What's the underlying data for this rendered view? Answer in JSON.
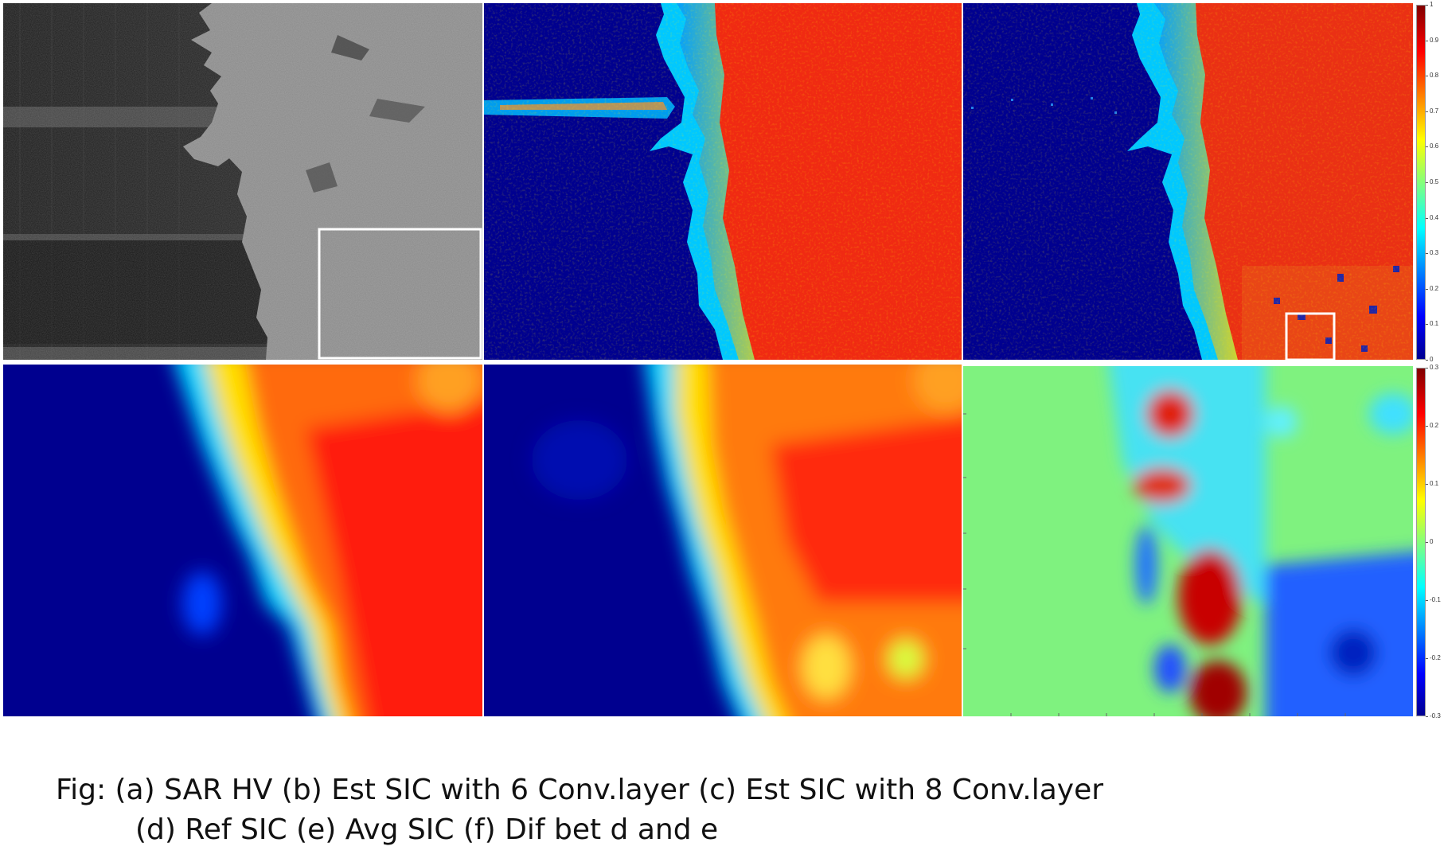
{
  "caption": {
    "line1": "Fig: (a) SAR HV (b) Est SIC with 6 Conv.layer (c) Est SIC with 8 Conv.layer",
    "line2": "(d) Ref SIC  (e) Avg SIC (f) Dif bet d and e"
  },
  "colorbar_top": {
    "colormap": "jet",
    "range": [
      0,
      1
    ],
    "tick_labels": [
      "1",
      "0.9",
      "0.8",
      "0.7",
      "0.6",
      "0.5",
      "0.4",
      "0.3",
      "0.2",
      "0.1",
      "0"
    ]
  },
  "colorbar_bottom": {
    "colormap": "jet",
    "range": [
      -0.3,
      0.3
    ],
    "tick_labels": [
      "0.3",
      "0.2",
      "0.1",
      "0",
      "-0.1",
      "-0.2",
      "-0.3"
    ]
  },
  "colors": {
    "open_water": "#00008f",
    "dense_ice": "#ef1e10",
    "zero_difference": "#7ff27f",
    "highlight_box": "#ffffff"
  }
}
